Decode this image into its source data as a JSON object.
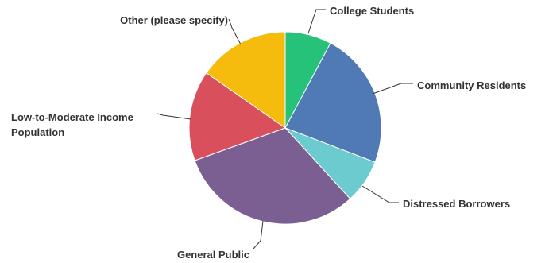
{
  "chart_data": {
    "type": "pie",
    "title": "",
    "start_angle_deg": 0,
    "direction": "clockwise",
    "slices": [
      {
        "label": "College Students",
        "value": 7.8,
        "color": "#27c279"
      },
      {
        "label": "Community Residents",
        "value": 23.0,
        "color": "#4f7ab5"
      },
      {
        "label": "Distressed Borrowers",
        "value": 7.4,
        "color": "#6ccbce"
      },
      {
        "label": "General Public",
        "value": 31.3,
        "color": "#7b5f93"
      },
      {
        "label": "Low-to-Moderate Income Population",
        "label_lines": [
          "Low-to-Moderate Income",
          "Population"
        ],
        "value": 15.2,
        "color": "#da4f5c"
      },
      {
        "label": "Other (please specify)",
        "value": 15.3,
        "color": "#f5bb0d"
      }
    ]
  }
}
